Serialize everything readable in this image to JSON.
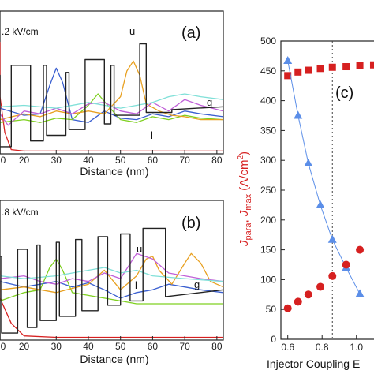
{
  "chart_data": [
    {
      "type": "line",
      "panel_label": "(a)",
      "field_text": ".2 kV/cm",
      "xlabel": "Distance (nm)",
      "x_ticks": [
        "0",
        "20",
        "30",
        "40",
        "50",
        "60",
        "70",
        "80"
      ],
      "xlim": [
        0,
        82
      ],
      "curve_labels": {
        "upper": "u",
        "injector": "g",
        "lower": "l"
      },
      "series": [
        {
          "color": "#d62020",
          "x": [
            0,
            4,
            8,
            12,
            14,
            16,
            20,
            30,
            40,
            50,
            60,
            70,
            82
          ],
          "y": [
            0.72,
            0.78,
            0.72,
            0.4,
            0.15,
            0.03,
            0.02,
            0.02,
            0.02,
            0.02,
            0.02,
            0.02,
            0.02
          ]
        },
        {
          "color": "#3a5fd0",
          "x": [
            0,
            10,
            20,
            25,
            28,
            30,
            32,
            35,
            40,
            45,
            50,
            55,
            60,
            65,
            70,
            75,
            82
          ],
          "y": [
            0.3,
            0.32,
            0.27,
            0.28,
            0.48,
            0.6,
            0.5,
            0.24,
            0.22,
            0.3,
            0.25,
            0.24,
            0.28,
            0.26,
            0.3,
            0.28,
            0.26
          ]
        },
        {
          "color": "#7fd020",
          "x": [
            0,
            10,
            20,
            25,
            30,
            35,
            40,
            43,
            46,
            50,
            55,
            60,
            65,
            70,
            75,
            82
          ],
          "y": [
            0.2,
            0.22,
            0.24,
            0.22,
            0.25,
            0.24,
            0.34,
            0.42,
            0.34,
            0.24,
            0.22,
            0.26,
            0.24,
            0.27,
            0.25,
            0.24
          ]
        },
        {
          "color": "#e8a020",
          "x": [
            0,
            10,
            20,
            25,
            30,
            35,
            40,
            45,
            50,
            52,
            54,
            56,
            58,
            62,
            66,
            70,
            75,
            82
          ],
          "y": [
            0.26,
            0.24,
            0.28,
            0.26,
            0.3,
            0.28,
            0.3,
            0.28,
            0.4,
            0.58,
            0.65,
            0.55,
            0.35,
            0.3,
            0.27,
            0.26,
            0.24,
            0.24
          ]
        },
        {
          "color": "#c060d8",
          "x": [
            0,
            5,
            10,
            15,
            20,
            25,
            30,
            35,
            40,
            45,
            50,
            55,
            60,
            65,
            70,
            75,
            82
          ],
          "y": [
            0.3,
            0.34,
            0.28,
            0.2,
            0.3,
            0.28,
            0.32,
            0.28,
            0.35,
            0.36,
            0.3,
            0.28,
            0.36,
            0.3,
            0.38,
            0.34,
            0.3
          ]
        },
        {
          "color": "#80e0d8",
          "x": [
            0,
            10,
            20,
            30,
            40,
            50,
            55,
            60,
            65,
            70,
            75,
            82
          ],
          "y": [
            0.36,
            0.33,
            0.34,
            0.32,
            0.36,
            0.32,
            0.34,
            0.36,
            0.4,
            0.42,
            0.4,
            0.38
          ]
        },
        {
          "color": "#222222",
          "x": [
            0,
            8,
            8,
            10,
            10,
            16,
            16,
            22,
            22,
            26,
            26,
            27,
            27,
            33,
            33,
            34,
            34,
            39,
            39,
            45,
            45,
            47,
            47,
            48,
            48,
            56,
            56,
            58,
            58,
            66,
            66,
            82
          ],
          "y": [
            0.0,
            0.0,
            0.55,
            0.55,
            0.05,
            0.05,
            0.62,
            0.62,
            0.09,
            0.09,
            0.62,
            0.62,
            0.13,
            0.13,
            0.57,
            0.57,
            0.17,
            0.17,
            0.66,
            0.66,
            0.21,
            0.21,
            0.62,
            0.62,
            0.27,
            0.27,
            0.77,
            0.77,
            0.29,
            0.29,
            0.31,
            0.33
          ]
        }
      ]
    },
    {
      "type": "line",
      "panel_label": "(b)",
      "field_text": ".8 kV/cm",
      "xlabel": "Distance (nm)",
      "x_ticks": [
        "0",
        "20",
        "30",
        "40",
        "50",
        "60",
        "70",
        "80"
      ],
      "xlim": [
        0,
        82
      ],
      "curve_labels": {
        "upper": "u",
        "injector": "g",
        "lower": "l"
      },
      "series": [
        {
          "color": "#d62020",
          "x": [
            0,
            4,
            8,
            12,
            16,
            20,
            30,
            40,
            50,
            60,
            70,
            82
          ],
          "y": [
            0.5,
            0.46,
            0.4,
            0.3,
            0.12,
            0.03,
            0.02,
            0.02,
            0.02,
            0.02,
            0.02,
            0.02
          ]
        },
        {
          "color": "#3a5fd0",
          "x": [
            0,
            10,
            20,
            25,
            30,
            35,
            40,
            45,
            50,
            55,
            60,
            65,
            70,
            75,
            82
          ],
          "y": [
            0.4,
            0.42,
            0.38,
            0.4,
            0.42,
            0.38,
            0.41,
            0.36,
            0.3,
            0.34,
            0.36,
            0.4,
            0.38,
            0.36,
            0.34
          ]
        },
        {
          "color": "#7fd020",
          "x": [
            0,
            10,
            20,
            25,
            28,
            30,
            32,
            35,
            40,
            45,
            50,
            55,
            60,
            65,
            70,
            75,
            82
          ],
          "y": [
            0.3,
            0.28,
            0.34,
            0.36,
            0.52,
            0.58,
            0.5,
            0.34,
            0.32,
            0.3,
            0.28,
            0.26,
            0.26,
            0.26,
            0.26,
            0.26,
            0.26
          ]
        },
        {
          "color": "#e8a020",
          "x": [
            0,
            10,
            20,
            30,
            40,
            45,
            50,
            55,
            58,
            60,
            62,
            66,
            70,
            72,
            75,
            78,
            82
          ],
          "y": [
            0.34,
            0.36,
            0.38,
            0.34,
            0.4,
            0.5,
            0.36,
            0.46,
            0.58,
            0.6,
            0.5,
            0.4,
            0.55,
            0.62,
            0.55,
            0.42,
            0.38
          ]
        },
        {
          "color": "#c060d8",
          "x": [
            0,
            10,
            20,
            25,
            30,
            35,
            40,
            45,
            50,
            55,
            60,
            65,
            70,
            75,
            82
          ],
          "y": [
            0.42,
            0.44,
            0.46,
            0.42,
            0.4,
            0.44,
            0.42,
            0.48,
            0.44,
            0.62,
            0.58,
            0.48,
            0.46,
            0.44,
            0.42
          ]
        },
        {
          "color": "#80e0d8",
          "x": [
            0,
            10,
            20,
            30,
            35,
            40,
            45,
            50,
            55,
            60,
            70,
            82
          ],
          "y": [
            0.44,
            0.46,
            0.44,
            0.46,
            0.48,
            0.5,
            0.52,
            0.48,
            0.5,
            0.46,
            0.44,
            0.42
          ]
        },
        {
          "color": "#222222",
          "x": [
            0,
            7,
            7,
            13,
            13,
            18,
            18,
            21,
            21,
            24,
            24,
            25,
            25,
            30,
            30,
            31,
            31,
            36,
            36,
            38,
            38,
            43,
            43,
            46,
            46,
            50,
            50,
            53,
            53,
            57,
            57,
            64,
            64,
            82
          ],
          "y": [
            0.0,
            0.0,
            0.6,
            0.6,
            0.05,
            0.05,
            0.65,
            0.65,
            0.09,
            0.09,
            0.68,
            0.68,
            0.14,
            0.14,
            0.7,
            0.7,
            0.17,
            0.17,
            0.72,
            0.72,
            0.21,
            0.21,
            0.74,
            0.74,
            0.25,
            0.25,
            0.76,
            0.76,
            0.28,
            0.28,
            0.8,
            0.8,
            0.31,
            0.36
          ]
        }
      ]
    },
    {
      "type": "scatter",
      "panel_label": "(c)",
      "xlabel": "Injector Coupling E",
      "ylabel": "J_para, J_max (A/cm^2)",
      "ylabel_parts": {
        "j": "J",
        "sub_para": "para",
        "sep": ", ",
        "sub_max": "max",
        "unit": " (A/cm",
        "sup": "2",
        "close": ")"
      },
      "x_ticks": [
        "0.6",
        "0.8",
        "1.0"
      ],
      "y_ticks": [
        "0",
        "50",
        "100",
        "150",
        "200",
        "250",
        "300",
        "350",
        "400",
        "450",
        "500"
      ],
      "xlim": [
        0.56,
        1.13
      ],
      "ylim": [
        0,
        500
      ],
      "vline_x": 0.86,
      "series": [
        {
          "color": "#d62020",
          "marker": "square",
          "x": [
            0.6,
            0.66,
            0.72,
            0.79,
            0.86,
            0.94,
            1.02,
            1.1
          ],
          "y": [
            442,
            448,
            451,
            454,
            456,
            457,
            459,
            460
          ]
        },
        {
          "color": "#5b8ee8",
          "marker": "triangle",
          "x": [
            0.6,
            0.66,
            0.72,
            0.79,
            0.86,
            0.94,
            1.02
          ],
          "y": [
            467,
            375,
            295,
            225,
            167,
            120,
            76
          ]
        },
        {
          "color": "#d62020",
          "marker": "circle",
          "x": [
            0.6,
            0.66,
            0.72,
            0.79,
            0.86,
            0.94,
            1.02
          ],
          "y": [
            52,
            63,
            75,
            88,
            106,
            125,
            150
          ]
        }
      ]
    }
  ]
}
